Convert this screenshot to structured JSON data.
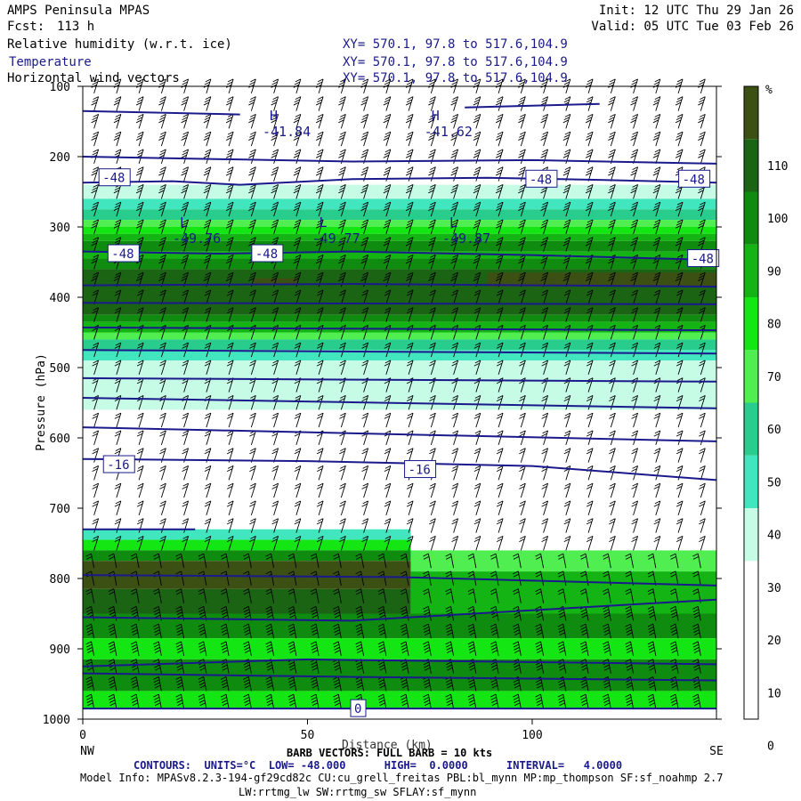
{
  "header": {
    "model": "AMPS Peninsula MPAS",
    "fcst_label": "Fcst:",
    "fcst_value": "113 h",
    "init": "Init: 12 UTC Thu 29 Jan 26",
    "valid": "Valid: 05 UTC Tue 03 Feb 26",
    "fields": [
      {
        "name": "Relative humidity (w.r.t. ice)",
        "xy": "XY= 570.1, 97.8 to 517.6,104.9"
      },
      {
        "name": "Temperature",
        "xy": "XY= 570.1, 97.8 to 517.6,104.9"
      },
      {
        "name": "Horizontal wind vectors",
        "xy": "XY= 570.1, 97.8 to 517.6,104.9"
      }
    ]
  },
  "footer": {
    "barb_text": "BARB VECTORS: FULL BARB = 10 kts",
    "xaxis_title": "Distance (km)",
    "contours": "CONTOURS:  UNITS=°C  LOW= -48.000      HIGH=  0.0000      INTERVAL=   4.0000",
    "model_info_1": "Model Info: MPASv8.2.3-194-gf29cd82c CU:cu_grell_freitas PBL:bl_mynn MP:mp_thompson SF:sf_noahmp 2.7",
    "model_info_2": "LW:rrtmg_lw SW:rrtmg_sw SFLAY:sf_mynn"
  },
  "colors": {
    "rh": [
      "#ffffff",
      "#ffffff",
      "#ffffff",
      "#c6fbe6",
      "#42e6be",
      "#28cc8c",
      "#50ee50",
      "#14e614",
      "#14b414",
      "#0f8c0f",
      "#1a6414",
      "#3c5014",
      "#c81e0a"
    ],
    "contour": "#1a1a8c"
  },
  "chart_data": {
    "type": "heatmap",
    "ylabel": "Pressure (hPa)",
    "x_ticks": [
      0,
      50,
      100
    ],
    "x_end_labels": {
      "left": "NW",
      "right": "SE"
    },
    "xlim": [
      0,
      141
    ],
    "ylim": [
      1000,
      100
    ],
    "y_ticks": [
      100,
      200,
      300,
      400,
      500,
      600,
      700,
      800,
      900,
      1000
    ],
    "colorbar": {
      "unit": "%",
      "levels": [
        0,
        10,
        20,
        30,
        40,
        50,
        60,
        70,
        80,
        90,
        100,
        110
      ],
      "bounds": [
        0,
        120
      ]
    },
    "rh_bands": [
      {
        "p_top": 240,
        "p_bottom": 260,
        "rh": 35
      },
      {
        "p_top": 260,
        "p_bottom": 275,
        "rh": 45
      },
      {
        "p_top": 275,
        "p_bottom": 290,
        "rh": 55
      },
      {
        "p_top": 290,
        "p_bottom": 300,
        "rh": 65
      },
      {
        "p_top": 300,
        "p_bottom": 310,
        "rh": 75
      },
      {
        "p_top": 310,
        "p_bottom": 320,
        "rh": 85
      },
      {
        "p_top": 320,
        "p_bottom": 335,
        "rh": 95
      },
      {
        "p_top": 335,
        "p_bottom": 345,
        "rh": 85
      },
      {
        "p_top": 345,
        "p_bottom": 360,
        "rh": 95
      },
      {
        "p_top": 360,
        "p_bottom": 425,
        "rh": 105
      },
      {
        "p_top": 425,
        "p_bottom": 435,
        "rh": 95
      },
      {
        "p_top": 435,
        "p_bottom": 450,
        "rh": 85
      },
      {
        "p_top": 450,
        "p_bottom": 460,
        "rh": 65
      },
      {
        "p_top": 460,
        "p_bottom": 475,
        "rh": 55
      },
      {
        "p_top": 475,
        "p_bottom": 490,
        "rh": 45
      },
      {
        "p_top": 490,
        "p_bottom": 540,
        "rh": 35
      },
      {
        "p_top": 540,
        "p_bottom": 560,
        "rh": 30
      }
    ],
    "rh_patches": [
      {
        "x0": 38,
        "x1": 48,
        "p_top": 373,
        "p_bottom": 383,
        "rh": 115
      },
      {
        "x0": 90,
        "x1": 141,
        "p_top": 365,
        "p_bottom": 385,
        "rh": 115
      },
      {
        "x0": 0,
        "x1": 73,
        "p_top": 730,
        "p_bottom": 745,
        "rh": 45
      },
      {
        "x0": 0,
        "x1": 73,
        "p_top": 745,
        "p_bottom": 760,
        "rh": 75
      },
      {
        "x0": 0,
        "x1": 73,
        "p_top": 760,
        "p_bottom": 775,
        "rh": 95
      },
      {
        "x0": 0,
        "x1": 73,
        "p_top": 775,
        "p_bottom": 815,
        "rh": 115
      },
      {
        "x0": 0,
        "x1": 73,
        "p_top": 815,
        "p_bottom": 850,
        "rh": 105
      },
      {
        "x0": 73,
        "x1": 141,
        "p_top": 760,
        "p_bottom": 790,
        "rh": 65
      },
      {
        "x0": 73,
        "x1": 141,
        "p_top": 790,
        "p_bottom": 850,
        "rh": 85
      },
      {
        "x0": 0,
        "x1": 141,
        "p_top": 850,
        "p_bottom": 885,
        "rh": 95
      },
      {
        "x0": 0,
        "x1": 141,
        "p_top": 885,
        "p_bottom": 915,
        "rh": 75
      },
      {
        "x0": 0,
        "x1": 141,
        "p_top": 915,
        "p_bottom": 960,
        "rh": 95
      },
      {
        "x0": 0,
        "x1": 141,
        "p_top": 960,
        "p_bottom": 985,
        "rh": 75
      },
      {
        "x0": 0,
        "x1": 141,
        "p_top": 985,
        "p_bottom": 1000,
        "rh": 5
      }
    ],
    "temp_contours": [
      {
        "value": -44,
        "points": [
          [
            0,
            135
          ],
          [
            35,
            140
          ]
        ]
      },
      {
        "value": -44,
        "points": [
          [
            85,
            130
          ],
          [
            115,
            125
          ]
        ]
      },
      {
        "value": -48,
        "points": [
          [
            0,
            237
          ],
          [
            20,
            235
          ],
          [
            35,
            240
          ],
          [
            60,
            232
          ],
          [
            90,
            230
          ],
          [
            115,
            233
          ],
          [
            141,
            237
          ]
        ]
      },
      {
        "value": -48,
        "points": [
          [
            0,
            335
          ],
          [
            30,
            338
          ],
          [
            60,
            335
          ],
          [
            100,
            340
          ],
          [
            141,
            347
          ]
        ]
      },
      {
        "value": -46,
        "points": [
          [
            0,
            200
          ],
          [
            60,
            207
          ],
          [
            100,
            205
          ],
          [
            141,
            210
          ]
        ]
      },
      {
        "value": -44,
        "points": [
          [
            0,
            383
          ],
          [
            60,
            381
          ],
          [
            141,
            385
          ]
        ]
      },
      {
        "value": -40,
        "points": [
          [
            0,
            408
          ],
          [
            141,
            410
          ]
        ]
      },
      {
        "value": -36,
        "points": [
          [
            0,
            443
          ],
          [
            141,
            447
          ]
        ]
      },
      {
        "value": -32,
        "points": [
          [
            0,
            475
          ],
          [
            141,
            480
          ]
        ]
      },
      {
        "value": -28,
        "points": [
          [
            0,
            515
          ],
          [
            141,
            520
          ]
        ]
      },
      {
        "value": -24,
        "points": [
          [
            0,
            543
          ],
          [
            141,
            558
          ]
        ]
      },
      {
        "value": -20,
        "points": [
          [
            0,
            585
          ],
          [
            141,
            605
          ]
        ]
      },
      {
        "value": -16,
        "points": [
          [
            0,
            630
          ],
          [
            50,
            633
          ],
          [
            100,
            640
          ],
          [
            141,
            660
          ]
        ]
      },
      {
        "value": -12,
        "points": [
          [
            0,
            730
          ],
          [
            25,
            730
          ]
        ]
      },
      {
        "value": -12,
        "points": [
          [
            0,
            795
          ],
          [
            70,
            798
          ],
          [
            141,
            810
          ]
        ]
      },
      {
        "value": -8,
        "points": [
          [
            0,
            855
          ],
          [
            60,
            860
          ],
          [
            141,
            830
          ]
        ]
      },
      {
        "value": -4,
        "points": [
          [
            0,
            925
          ],
          [
            50,
            915
          ],
          [
            141,
            922
          ]
        ]
      },
      {
        "value": -2,
        "points": [
          [
            0,
            935
          ],
          [
            60,
            940
          ],
          [
            141,
            945
          ]
        ]
      },
      {
        "value": 0,
        "points": [
          [
            0,
            985
          ],
          [
            141,
            985
          ]
        ]
      }
    ],
    "temp_labels": [
      {
        "x": 4,
        "p": 230,
        "text": "-48"
      },
      {
        "x": 99,
        "p": 232,
        "text": "-48"
      },
      {
        "x": 133,
        "p": 232,
        "text": "-48"
      },
      {
        "x": 6,
        "p": 338,
        "text": "-48"
      },
      {
        "x": 38,
        "p": 338,
        "text": "-48"
      },
      {
        "x": 135,
        "p": 345,
        "text": "-48"
      },
      {
        "x": 5,
        "p": 638,
        "text": "-16"
      },
      {
        "x": 72,
        "p": 645,
        "text": "-16"
      },
      {
        "x": 60,
        "p": 985,
        "text": "0"
      }
    ],
    "extrema": [
      {
        "x": 40,
        "p": 148,
        "kind": "H",
        "value": "-41.84"
      },
      {
        "x": 76,
        "p": 148,
        "kind": "H",
        "value": "-41.62"
      },
      {
        "x": 20,
        "p": 300,
        "kind": "L",
        "value": "-49.76"
      },
      {
        "x": 51,
        "p": 300,
        "kind": "L",
        "value": "-49.77"
      },
      {
        "x": 80,
        "p": 300,
        "kind": "L",
        "value": "-49.87"
      }
    ]
  }
}
